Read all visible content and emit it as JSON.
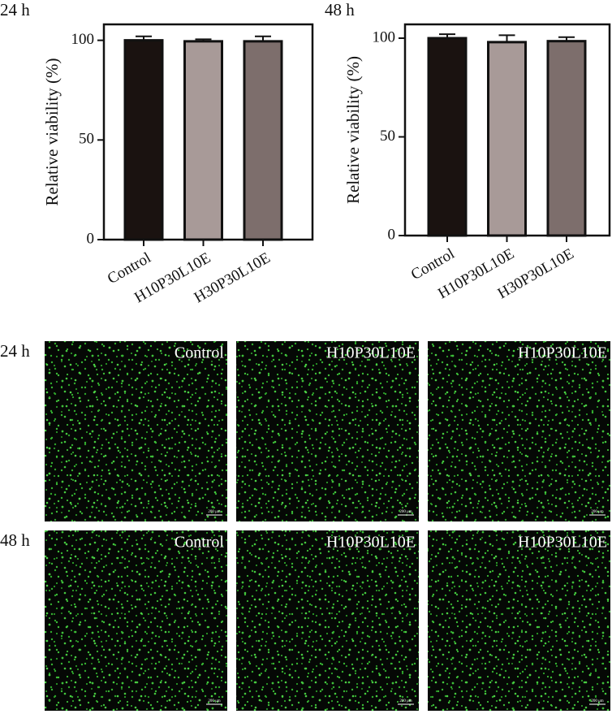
{
  "chart_data": [
    {
      "type": "bar",
      "title": "24 h",
      "ylabel": "Relative viability (%)",
      "categories": [
        "Control",
        "H10P30L10E",
        "H30P30L10E"
      ],
      "values": [
        100,
        99.5,
        99.5
      ],
      "errors": [
        2,
        1,
        2.5
      ],
      "colors": [
        "#1a1210",
        "#a89a98",
        "#7d6e6c"
      ],
      "ylim": [
        0,
        108
      ],
      "yticks": [
        0,
        50,
        100
      ]
    },
    {
      "type": "bar",
      "title": "48 h",
      "ylabel": "Relative viability (%)",
      "categories": [
        "Control",
        "H10P30L10E",
        "H30P30L10E"
      ],
      "values": [
        100,
        98,
        98.5
      ],
      "errors": [
        2,
        3.5,
        2
      ],
      "colors": [
        "#1a1210",
        "#a89a98",
        "#7d6e6c"
      ],
      "ylim": [
        0,
        107
      ],
      "yticks": [
        0,
        50,
        100
      ]
    }
  ],
  "images": {
    "rows": [
      {
        "label": "24 h",
        "panels": [
          "Control",
          "H10P30L10E",
          "H10P30L10E"
        ]
      },
      {
        "label": "48 h",
        "panels": [
          "Control",
          "H10P30L10E",
          "H10P30L10E"
        ]
      }
    ],
    "scale_bar": "200 μm"
  }
}
